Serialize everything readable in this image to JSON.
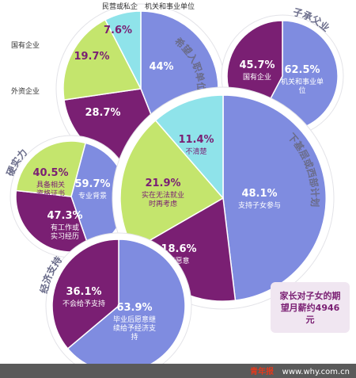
{
  "colors": {
    "purple": "#7a1f73",
    "blue": "#7f8ce0",
    "green": "#c4e56d",
    "cyan": "#8fe3ea",
    "title_text": "#6a6c8a",
    "background": "#ffffff"
  },
  "chart_data": [
    {
      "type": "pie",
      "title": "希望入职单位",
      "slices": [
        {
          "label": "机关和事业单位",
          "value": 44.0,
          "value_text": "44%",
          "color": "blue",
          "inside_label": false
        },
        {
          "label": "国有企业",
          "value": 28.7,
          "value_text": "28.7%",
          "color": "purple",
          "inside_label": false
        },
        {
          "label": "外资企业",
          "value": 19.7,
          "value_text": "19.7%",
          "color": "green",
          "inside_label": false
        },
        {
          "label": "民营或私企",
          "value": 7.6,
          "value_text": "7.6%",
          "color": "cyan",
          "inside_label": false
        }
      ]
    },
    {
      "type": "pie",
      "title": "子承父业",
      "slices": [
        {
          "label": "机关和事业单位",
          "value": 62.5,
          "value_text": "62.5%",
          "color": "blue",
          "inside_label": true
        },
        {
          "label": "国有企业",
          "value": 45.7,
          "value_text": "45.7%",
          "color": "purple",
          "inside_label": true
        }
      ]
    },
    {
      "type": "pie",
      "title": "硬实力",
      "slices": [
        {
          "label": "专业背景",
          "value": 59.7,
          "value_text": "59.7%",
          "color": "blue",
          "inside_label": true
        },
        {
          "label": "有工作或实习经历",
          "value": 47.3,
          "value_text": "47.3%",
          "color": "purple",
          "inside_label": true
        },
        {
          "label": "具备相关资格证书",
          "value": 40.5,
          "value_text": "40.5%",
          "color": "green",
          "inside_label": true
        }
      ]
    },
    {
      "type": "pie",
      "title": "下基层或西部计划",
      "slices": [
        {
          "label": "支持子女参与",
          "value": 48.1,
          "value_text": "48.1%",
          "color": "blue",
          "inside_label": true
        },
        {
          "label": "不愿意",
          "value": 18.6,
          "value_text": "18.6%",
          "color": "purple",
          "inside_label": true
        },
        {
          "label": "实在无法就业时再考虑",
          "value": 21.9,
          "value_text": "21.9%",
          "color": "green",
          "inside_label": true
        },
        {
          "label": "不清楚",
          "value": 11.4,
          "value_text": "11.4%",
          "color": "cyan",
          "inside_label": true
        }
      ]
    },
    {
      "type": "pie",
      "title": "经济支持",
      "slices": [
        {
          "label": "毕业后愿意继续给予经济支持",
          "value": 63.9,
          "value_text": "63.9%",
          "color": "blue",
          "inside_label": true
        },
        {
          "label": "不会给予支持",
          "value": 36.1,
          "value_text": "36.1%",
          "color": "purple",
          "inside_label": true
        }
      ]
    }
  ],
  "callout": "家长对子女的期望月薪约4946元",
  "footer": {
    "logo_text": "青年报",
    "source": "www.why.com.cn"
  }
}
